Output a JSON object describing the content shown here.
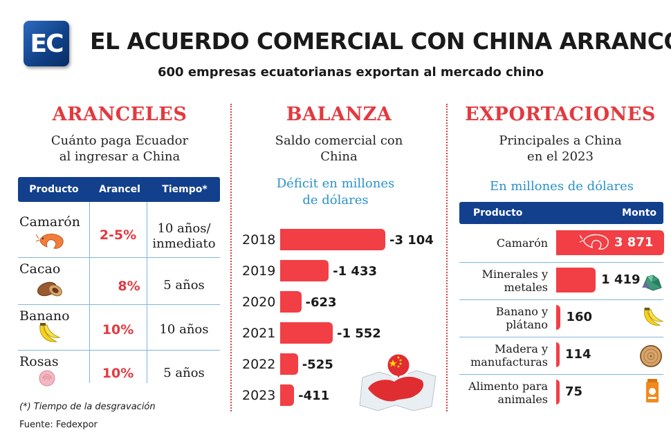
{
  "header": {
    "logo_text": "EC",
    "title": "EL ACUERDO COMERCIAL CON CHINA ARRANCÓ",
    "subtitle": "600 empresas ecuatorianas exportan al mercado chino"
  },
  "aranceles": {
    "heading": "ARANCELES",
    "desc_line1": "Cuánto paga Ecuador",
    "desc_line2": "al ingresar a China",
    "columns": [
      "Producto",
      "Arancel",
      "Tiempo*"
    ],
    "rows": [
      {
        "producto": "Camarón",
        "arancel": "2-5%",
        "tiempo_line1": "10 años/",
        "tiempo_line2": "inmediato",
        "icon": "shrimp-icon"
      },
      {
        "producto": "Cacao",
        "arancel": "8%",
        "tiempo_line1": "5 años",
        "tiempo_line2": "",
        "icon": "cacao-icon"
      },
      {
        "producto": "Banano",
        "arancel": "10%",
        "tiempo_line1": "10 años",
        "tiempo_line2": "",
        "icon": "banana-icon"
      },
      {
        "producto": "Rosas",
        "arancel": "10%",
        "tiempo_line1": "5 años",
        "tiempo_line2": "",
        "icon": "rose-icon"
      }
    ],
    "footnote": "(*) Tiempo de la desgravación",
    "source": "Fuente: Fedexpor"
  },
  "balanza": {
    "heading": "BALANZA",
    "desc_line1": "Saldo comercial con",
    "desc_line2": "China",
    "blue_line1": "Déficit en millones",
    "blue_line2": "de dólares"
  },
  "exportaciones": {
    "heading": "EXPORTACIONES",
    "desc_line1": "Principales a China",
    "desc_line2": "en el 2023",
    "blue_line": "En millones de dólares",
    "columns": [
      "Producto",
      "Monto"
    ]
  },
  "colors": {
    "red": "#e23a3f",
    "bar_red": "#f13f45",
    "navy": "#13408d",
    "blue_text": "#2a92c9"
  },
  "chart_data": [
    {
      "type": "bar",
      "orientation": "horizontal",
      "title": "BALANZA",
      "categories": [
        "2018",
        "2019",
        "2020",
        "2021",
        "2022",
        "2023"
      ],
      "values": [
        -3104,
        -1433,
        -623,
        -1552,
        -525,
        -411
      ],
      "value_labels": [
        "-3 104",
        "-1 433",
        "-623",
        "-1 552",
        "-525",
        "-411"
      ]
    },
    {
      "type": "bar",
      "orientation": "horizontal",
      "title": "EXPORTACIONES",
      "categories": [
        "Camarón",
        "Minerales y metales",
        "Banano y plátano",
        "Madera y manufacturas",
        "Alimento para animales"
      ],
      "label_lines": [
        [
          "Camarón"
        ],
        [
          "Minerales y",
          "metales"
        ],
        [
          "Banano y",
          "plátano"
        ],
        [
          "Madera y",
          "manufacturas"
        ],
        [
          "Alimento para",
          "animales"
        ]
      ],
      "values": [
        3871,
        1419,
        160,
        114,
        75
      ],
      "value_labels": [
        "3 871",
        "1 419",
        "160",
        "114",
        "75"
      ],
      "icons": [
        "shrimp-icon",
        "mineral-icon",
        "banana-icon",
        "wood-icon",
        "pet-food-icon"
      ]
    }
  ]
}
